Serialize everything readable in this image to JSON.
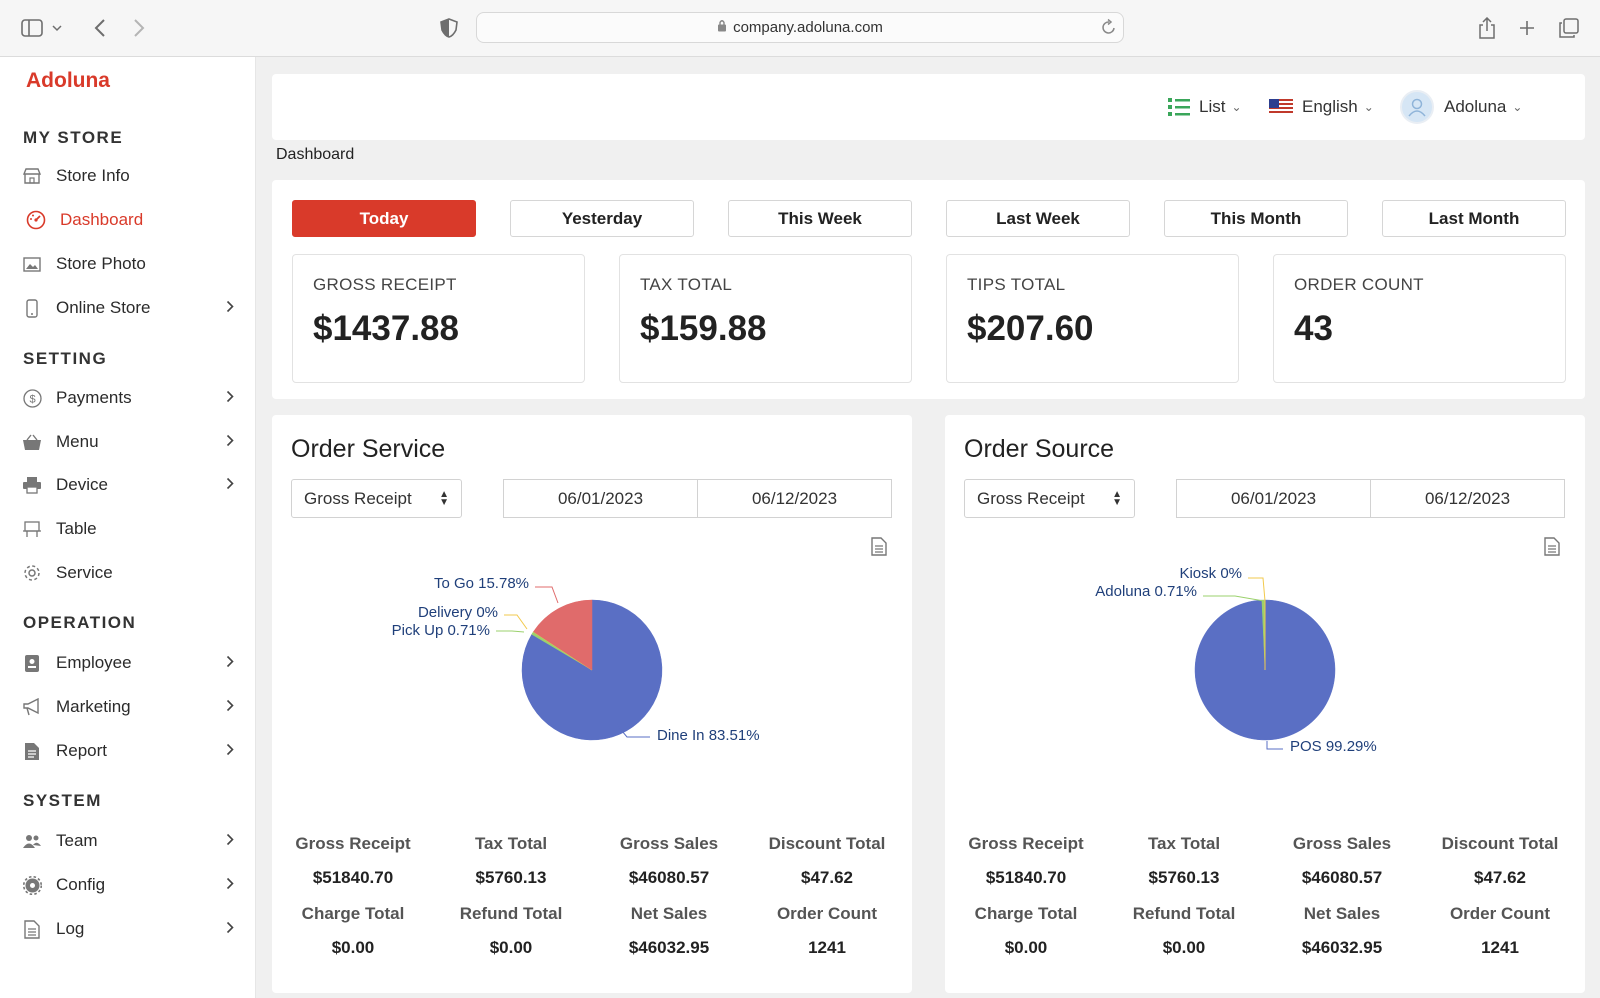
{
  "browser": {
    "url": "company.adoluna.com"
  },
  "sidebar": {
    "brand": "Adoluna",
    "sections": [
      {
        "title": "MY STORE",
        "items": [
          {
            "label": "Store Info",
            "icon": "store-icon"
          },
          {
            "label": "Dashboard",
            "icon": "dashboard-icon",
            "active": true
          },
          {
            "label": "Store Photo",
            "icon": "photo-icon"
          },
          {
            "label": "Online Store",
            "icon": "phone-icon",
            "chevron": true
          }
        ]
      },
      {
        "title": "SETTING",
        "items": [
          {
            "label": "Payments",
            "icon": "dollar-icon",
            "chevron": true
          },
          {
            "label": "Menu",
            "icon": "basket-icon",
            "chevron": true
          },
          {
            "label": "Device",
            "icon": "printer-icon",
            "chevron": true
          },
          {
            "label": "Table",
            "icon": "table-icon"
          },
          {
            "label": "Service",
            "icon": "gear-icon"
          }
        ]
      },
      {
        "title": "OPERATION",
        "items": [
          {
            "label": "Employee",
            "icon": "badge-icon",
            "chevron": true
          },
          {
            "label": "Marketing",
            "icon": "megaphone-icon",
            "chevron": true
          },
          {
            "label": "Report",
            "icon": "report-icon",
            "chevron": true
          }
        ]
      },
      {
        "title": "SYSTEM",
        "items": [
          {
            "label": "Team",
            "icon": "team-icon",
            "chevron": true
          },
          {
            "label": "Config",
            "icon": "config-icon",
            "chevron": true
          },
          {
            "label": "Log",
            "icon": "log-icon",
            "chevron": true
          }
        ]
      }
    ]
  },
  "topbar": {
    "list_label": "List",
    "language": "English",
    "user": "Adoluna"
  },
  "breadcrumb": "Dashboard",
  "period_tabs": [
    "Today",
    "Yesterday",
    "This Week",
    "Last Week",
    "This Month",
    "Last Month"
  ],
  "active_tab": "Today",
  "summary": [
    {
      "label": "GROSS RECEIPT",
      "value": "$1437.88"
    },
    {
      "label": "TAX TOTAL",
      "value": "$159.88"
    },
    {
      "label": "TIPS TOTAL",
      "value": "$207.60"
    },
    {
      "label": "ORDER COUNT",
      "value": "43"
    }
  ],
  "order_service": {
    "title": "Order Service",
    "metric_select": "Gross Receipt",
    "date_from": "06/01/2023",
    "date_to": "06/12/2023",
    "metrics": [
      {
        "label": "Gross Receipt",
        "value": "$51840.70"
      },
      {
        "label": "Tax Total",
        "value": "$5760.13"
      },
      {
        "label": "Gross Sales",
        "value": "$46080.57"
      },
      {
        "label": "Discount Total",
        "value": "$47.62"
      },
      {
        "label": "Charge Total",
        "value": "$0.00"
      },
      {
        "label": "Refund Total",
        "value": "$0.00"
      },
      {
        "label": "Net Sales",
        "value": "$46032.95"
      },
      {
        "label": "Order Count",
        "value": "1241"
      }
    ]
  },
  "order_source": {
    "title": "Order Source",
    "metric_select": "Gross Receipt",
    "date_from": "06/01/2023",
    "date_to": "06/12/2023",
    "metrics": [
      {
        "label": "Gross Receipt",
        "value": "$51840.70"
      },
      {
        "label": "Tax Total",
        "value": "$5760.13"
      },
      {
        "label": "Gross Sales",
        "value": "$46080.57"
      },
      {
        "label": "Discount Total",
        "value": "$47.62"
      },
      {
        "label": "Charge Total",
        "value": "$0.00"
      },
      {
        "label": "Refund Total",
        "value": "$0.00"
      },
      {
        "label": "Net Sales",
        "value": "$46032.95"
      },
      {
        "label": "Order Count",
        "value": "1241"
      }
    ]
  },
  "chart_data": [
    {
      "type": "pie",
      "slices": [
        {
          "label": "Dine In",
          "value": 83.51,
          "display": "Dine In 83.51%",
          "color": "#5a6fc4"
        },
        {
          "label": "Pick Up",
          "value": 0.71,
          "display": "Pick Up 0.71%",
          "color": "#9bd16c"
        },
        {
          "label": "Delivery",
          "value": 0,
          "display": "Delivery 0%",
          "color": "#f2c94c"
        },
        {
          "label": "To Go",
          "value": 15.78,
          "display": "To Go 15.78%",
          "color": "#e06b6b"
        }
      ]
    },
    {
      "type": "pie",
      "slices": [
        {
          "label": "POS",
          "value": 99.29,
          "display": "POS 99.29%",
          "color": "#5a6fc4"
        },
        {
          "label": "Adoluna",
          "value": 0.71,
          "display": "Adoluna 0.71%",
          "color": "#9bd16c"
        },
        {
          "label": "Kiosk",
          "value": 0,
          "display": "Kiosk 0%",
          "color": "#f2c94c"
        }
      ]
    }
  ],
  "colors": {
    "accent": "#d93a2a",
    "pie_primary": "#5a6fc4",
    "pie_secondary": "#e06b6b"
  }
}
